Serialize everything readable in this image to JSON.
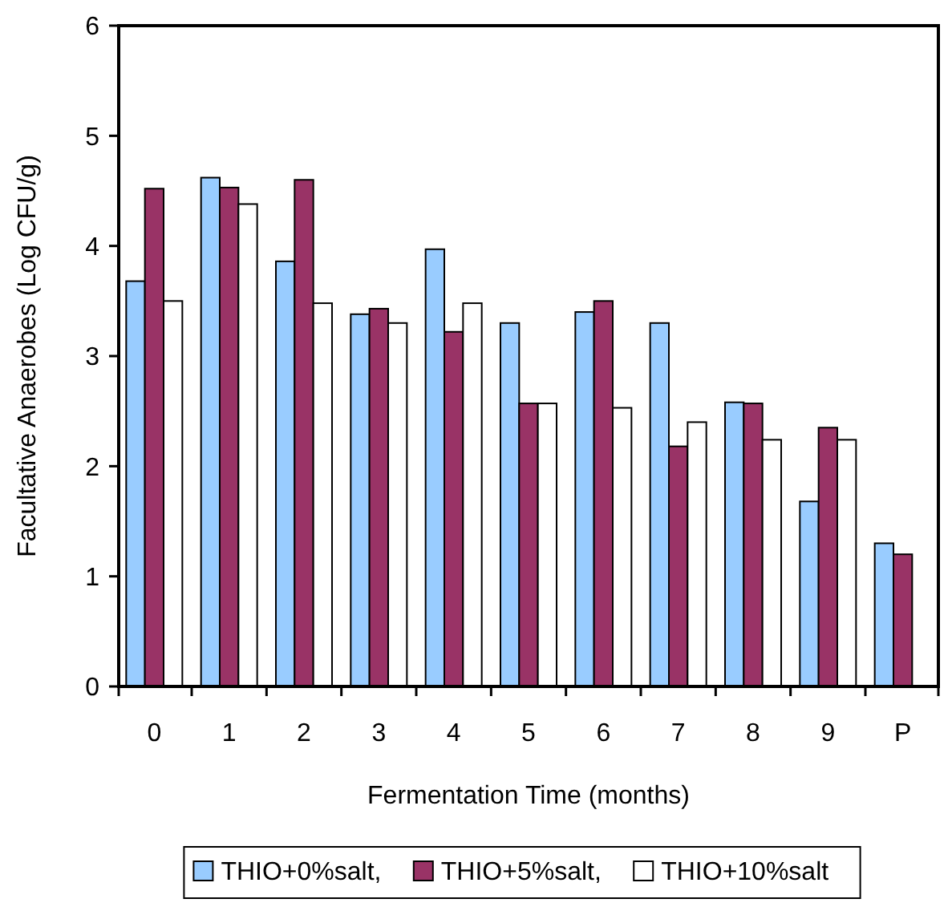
{
  "chart_data": {
    "type": "bar",
    "xlabel": "Fermentation Time (months)",
    "ylabel": "Facultative Anaerobes (Log CFU/g)",
    "categories": [
      "0",
      "1",
      "2",
      "3",
      "4",
      "5",
      "6",
      "7",
      "8",
      "9",
      "P"
    ],
    "series": [
      {
        "name": "THIO+0%salt,",
        "color": "#99ccff",
        "values": [
          3.68,
          4.62,
          3.86,
          3.38,
          3.97,
          3.3,
          3.4,
          3.3,
          2.58,
          1.68,
          1.3
        ]
      },
      {
        "name": "THIO+5%salt,",
        "color": "#993366",
        "values": [
          4.52,
          4.53,
          4.6,
          3.43,
          3.22,
          2.57,
          3.5,
          2.18,
          2.57,
          2.35,
          1.2
        ]
      },
      {
        "name": "THIO+10%salt",
        "color": "#ffffff",
        "values": [
          3.5,
          4.38,
          3.48,
          3.3,
          3.48,
          2.57,
          2.53,
          2.4,
          2.24,
          2.24,
          null
        ]
      }
    ],
    "ylim": [
      0,
      6
    ],
    "yticks": [
      0,
      1,
      2,
      3,
      4,
      5,
      6
    ],
    "grid": false,
    "legend": "bottom"
  }
}
